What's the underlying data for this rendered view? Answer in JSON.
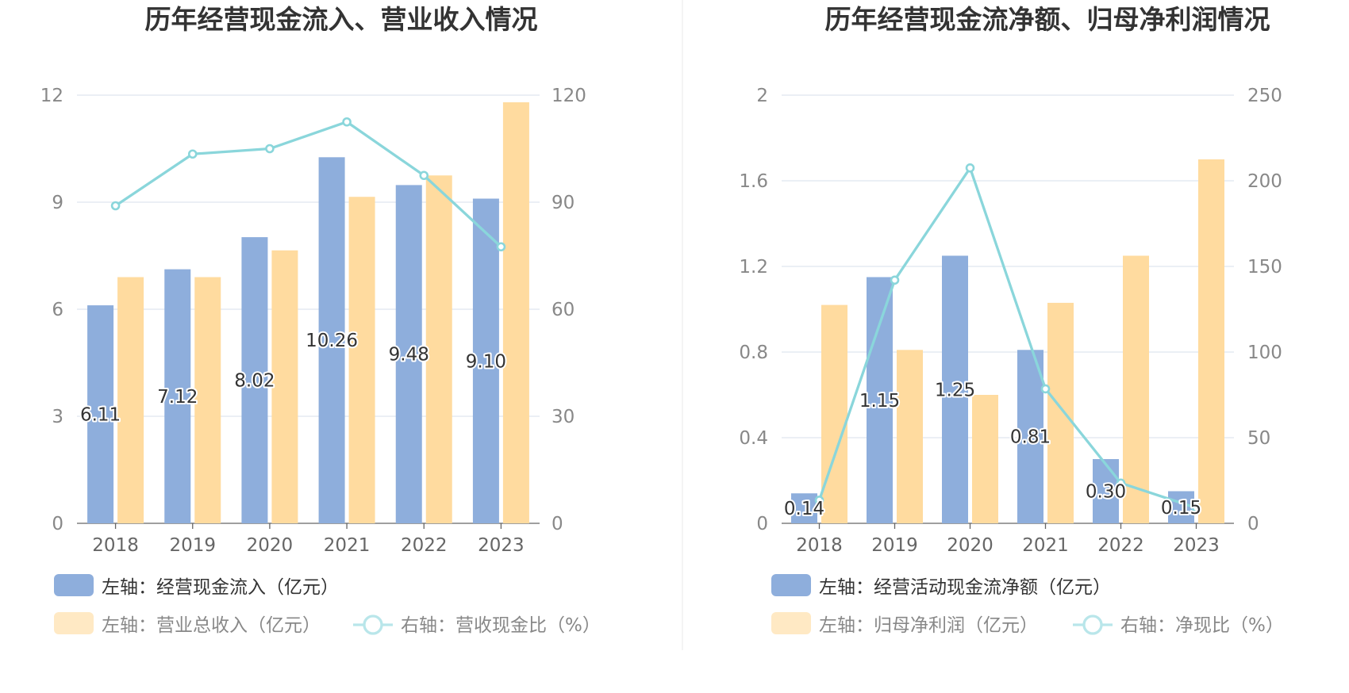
{
  "colors": {
    "bar_blue": "#8eaedc",
    "bar_orange": "#ffdb9f",
    "line_cyan": "#8ad6db",
    "legend_orange_faded": "#ffe9c4",
    "legend_line_faded": "#b9e6ea"
  },
  "chart_data": [
    {
      "type": "bar",
      "title": "历年经营现金流入、营业收入情况",
      "categories": [
        "2018",
        "2019",
        "2020",
        "2021",
        "2022",
        "2023"
      ],
      "left_axis": {
        "ticks": [
          "0",
          "3",
          "6",
          "9",
          "12"
        ],
        "ylim": [
          0,
          12
        ]
      },
      "right_axis": {
        "ticks": [
          "0",
          "30",
          "60",
          "90",
          "120"
        ],
        "ylim": [
          0,
          120
        ]
      },
      "series": [
        {
          "name": "左轴：经营现金流入（亿元）",
          "type": "bar",
          "axis": "left",
          "color": "#8eaedc",
          "values": [
            6.11,
            7.12,
            8.02,
            10.26,
            9.48,
            9.1
          ],
          "labels": [
            "6.11",
            "7.12",
            "8.02",
            "10.26",
            "9.48",
            "9.10"
          ]
        },
        {
          "name": "左轴：营业总收入（亿元）",
          "type": "bar",
          "axis": "left",
          "color": "#ffdb9f",
          "values": [
            6.9,
            6.9,
            7.65,
            9.15,
            9.75,
            11.8
          ]
        },
        {
          "name": "右轴：营收现金比（%）",
          "type": "line",
          "axis": "right",
          "color": "#8ad6db",
          "values": [
            89,
            103.5,
            105,
            112.5,
            97.5,
            77.5
          ]
        }
      ],
      "legend": {
        "row1": [
          {
            "text": "左轴：经营现金流入（亿元）",
            "kind": "bar-blue"
          }
        ],
        "row2": [
          {
            "text": "左轴：营业总收入（亿元）",
            "kind": "bar-orange"
          },
          {
            "text": "右轴：营收现金比（%）",
            "kind": "line"
          }
        ]
      }
    },
    {
      "type": "bar",
      "title": "历年经营现金流净额、归母净利润情况",
      "categories": [
        "2018",
        "2019",
        "2020",
        "2021",
        "2022",
        "2023"
      ],
      "left_axis": {
        "ticks": [
          "0",
          "0.4",
          "0.8",
          "1.2",
          "1.6",
          "2"
        ],
        "ylim": [
          0,
          2
        ]
      },
      "right_axis": {
        "ticks": [
          "0",
          "50",
          "100",
          "150",
          "200",
          "250"
        ],
        "ylim": [
          0,
          250
        ]
      },
      "series": [
        {
          "name": "左轴：经营活动现金流净额（亿元）",
          "type": "bar",
          "axis": "left",
          "color": "#8eaedc",
          "values": [
            0.14,
            1.15,
            1.25,
            0.81,
            0.3,
            0.15
          ],
          "labels": [
            "0.14",
            "1.15",
            "1.25",
            "0.81",
            "0.30",
            "0.15"
          ]
        },
        {
          "name": "左轴：归母净利润（亿元）",
          "type": "bar",
          "axis": "left",
          "color": "#ffdb9f",
          "values": [
            1.02,
            0.81,
            0.6,
            1.03,
            1.25,
            1.7
          ]
        },
        {
          "name": "右轴：净现比（%）",
          "type": "line",
          "axis": "right",
          "color": "#8ad6db",
          "values": [
            13.5,
            142,
            207.5,
            78.5,
            23.5,
            9
          ]
        }
      ],
      "legend": {
        "row1": [
          {
            "text": "左轴：经营活动现金流净额（亿元）",
            "kind": "bar-blue"
          }
        ],
        "row2": [
          {
            "text": "左轴：归母净利润（亿元）",
            "kind": "bar-orange"
          },
          {
            "text": "右轴：净现比（%）",
            "kind": "line"
          }
        ]
      }
    }
  ]
}
